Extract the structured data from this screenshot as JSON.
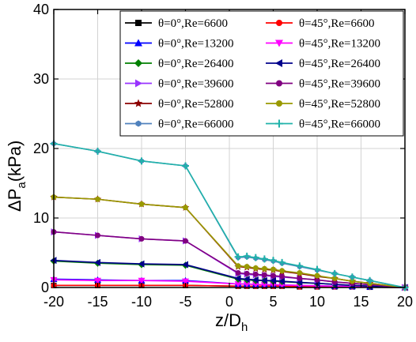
{
  "chart_data": {
    "type": "line",
    "xlabel_main": "z/D",
    "xlabel_sub": "h",
    "ylabel_main": "ΔP",
    "ylabel_sub": "a",
    "ylabel_unit": "(kPa)",
    "xlim": [
      -20,
      20
    ],
    "ylim": [
      0,
      40
    ],
    "x_ticks": [
      -20,
      -15,
      -10,
      -5,
      0,
      5,
      10,
      15,
      20
    ],
    "y_ticks": [
      0,
      10,
      20,
      30,
      40
    ],
    "x_tick_labels": [
      "-20",
      "-15",
      "-10",
      "-5",
      "0",
      "5",
      "10",
      "15",
      "20"
    ],
    "y_tick_labels": [
      "0",
      "10",
      "20",
      "30",
      "40"
    ],
    "grid": true,
    "legend_position": "top-right",
    "series": [
      {
        "name": "θ=0°,Re=6600",
        "color": "#000000",
        "marker": "square",
        "x": [
          -20,
          -15,
          -10,
          -5,
          1,
          2,
          3,
          4,
          5,
          6,
          8,
          10,
          12,
          14,
          16,
          20
        ],
        "y": [
          0.3,
          0.3,
          0.3,
          0.3,
          0.2,
          0.2,
          0.2,
          0.2,
          0.2,
          0.2,
          0.1,
          0.1,
          0.1,
          0.1,
          0.05,
          0.0
        ]
      },
      {
        "name": "θ=45°,Re=6600",
        "color": "#ff0000",
        "marker": "circle",
        "x": [
          -20,
          -15,
          -10,
          -5,
          1,
          2,
          3,
          4,
          5,
          6,
          8,
          10,
          12,
          14,
          16,
          20
        ],
        "y": [
          0.3,
          0.3,
          0.3,
          0.3,
          0.2,
          0.2,
          0.2,
          0.2,
          0.2,
          0.2,
          0.1,
          0.1,
          0.1,
          0.1,
          0.05,
          0.0
        ]
      },
      {
        "name": "θ=0°,Re=13200",
        "color": "#0000ff",
        "marker": "triangle-up",
        "x": [
          -20,
          -15,
          -10,
          -5,
          1,
          2,
          3,
          4,
          5,
          6,
          8,
          10,
          12,
          14,
          16,
          20
        ],
        "y": [
          1.2,
          1.1,
          1.0,
          1.0,
          0.5,
          0.5,
          0.45,
          0.4,
          0.4,
          0.35,
          0.3,
          0.25,
          0.2,
          0.15,
          0.1,
          0.0
        ]
      },
      {
        "name": "θ=45°,Re=13200",
        "color": "#ff00ff",
        "marker": "triangle-down",
        "x": [
          -20,
          -15,
          -10,
          -5,
          1,
          2,
          3,
          4,
          5,
          6,
          8,
          10,
          12,
          14,
          16,
          20
        ],
        "y": [
          1.1,
          1.0,
          1.0,
          0.9,
          0.5,
          0.5,
          0.45,
          0.4,
          0.4,
          0.35,
          0.3,
          0.25,
          0.2,
          0.15,
          0.1,
          0.0
        ]
      },
      {
        "name": "θ=0°,Re=26400",
        "color": "#008000",
        "marker": "diamond",
        "x": [
          -20,
          -15,
          -10,
          -5,
          1,
          2,
          3,
          4,
          5,
          6,
          8,
          10,
          12,
          14,
          16,
          20
        ],
        "y": [
          3.8,
          3.5,
          3.3,
          3.2,
          1.2,
          1.1,
          1.0,
          1.0,
          0.9,
          0.85,
          0.7,
          0.6,
          0.45,
          0.3,
          0.2,
          0.0
        ]
      },
      {
        "name": "θ=45°,Re=26400",
        "color": "#00008b",
        "marker": "triangle-left",
        "x": [
          -20,
          -15,
          -10,
          -5,
          1,
          2,
          3,
          4,
          5,
          6,
          8,
          10,
          12,
          14,
          16,
          20
        ],
        "y": [
          3.9,
          3.6,
          3.4,
          3.3,
          1.3,
          1.2,
          1.1,
          1.0,
          1.0,
          0.9,
          0.75,
          0.6,
          0.45,
          0.3,
          0.2,
          0.0
        ]
      },
      {
        "name": "θ=0°,Re=39600",
        "color": "#9933ff",
        "marker": "triangle-right",
        "x": [
          -20,
          -15,
          -10,
          -5,
          1,
          2,
          3,
          4,
          5,
          6,
          8,
          10,
          12,
          14,
          16,
          20
        ],
        "y": [
          8.0,
          7.5,
          7.0,
          6.7,
          2.0,
          1.9,
          1.8,
          1.7,
          1.6,
          1.5,
          1.3,
          1.1,
          0.8,
          0.6,
          0.4,
          0.0
        ]
      },
      {
        "name": "θ=45°,Re=39600",
        "color": "#800080",
        "marker": "circle",
        "x": [
          -20,
          -15,
          -10,
          -5,
          1,
          2,
          3,
          4,
          5,
          6,
          8,
          10,
          12,
          14,
          16,
          20
        ],
        "y": [
          8.0,
          7.5,
          7.0,
          6.7,
          2.1,
          2.0,
          1.9,
          1.8,
          1.7,
          1.6,
          1.3,
          1.1,
          0.8,
          0.6,
          0.4,
          0.0
        ]
      },
      {
        "name": "θ=0°,Re=52800",
        "color": "#8b0000",
        "marker": "star",
        "x": [
          -20,
          -15,
          -10,
          -5,
          1,
          2,
          3,
          4,
          5,
          6,
          8,
          10,
          12,
          14,
          16,
          20
        ],
        "y": [
          13.0,
          12.7,
          12.0,
          11.5,
          3.0,
          2.9,
          2.7,
          2.6,
          2.5,
          2.3,
          2.0,
          1.6,
          1.3,
          0.9,
          0.6,
          0.0
        ]
      },
      {
        "name": "θ=45°,Re=52800",
        "color": "#999900",
        "marker": "circle",
        "x": [
          -20,
          -15,
          -10,
          -5,
          1,
          2,
          3,
          4,
          5,
          6,
          8,
          10,
          12,
          14,
          16,
          20
        ],
        "y": [
          13.0,
          12.7,
          12.0,
          11.5,
          3.1,
          3.0,
          2.8,
          2.7,
          2.6,
          2.4,
          2.1,
          1.7,
          1.3,
          0.9,
          0.6,
          0.0
        ]
      },
      {
        "name": "θ=0°,Re=66000",
        "color": "#4f81bd",
        "marker": "hexagon",
        "x": [
          -20,
          -15,
          -10,
          -5,
          1,
          2,
          3,
          4,
          5,
          6,
          8,
          10,
          12,
          14,
          16,
          20
        ],
        "y": [
          20.7,
          19.6,
          18.2,
          17.5,
          4.3,
          4.4,
          4.2,
          4.0,
          3.8,
          3.5,
          3.0,
          2.5,
          2.0,
          1.5,
          1.0,
          0.0
        ]
      },
      {
        "name": "θ=45°,Re=66000",
        "color": "#20b2aa",
        "marker": "plus",
        "x": [
          -20,
          -15,
          -10,
          -5,
          1,
          2,
          3,
          4,
          5,
          6,
          8,
          10,
          12,
          14,
          16,
          20
        ],
        "y": [
          20.7,
          19.6,
          18.2,
          17.5,
          4.4,
          4.5,
          4.3,
          4.1,
          3.9,
          3.6,
          3.1,
          2.6,
          2.0,
          1.5,
          1.0,
          0.0
        ]
      }
    ]
  }
}
